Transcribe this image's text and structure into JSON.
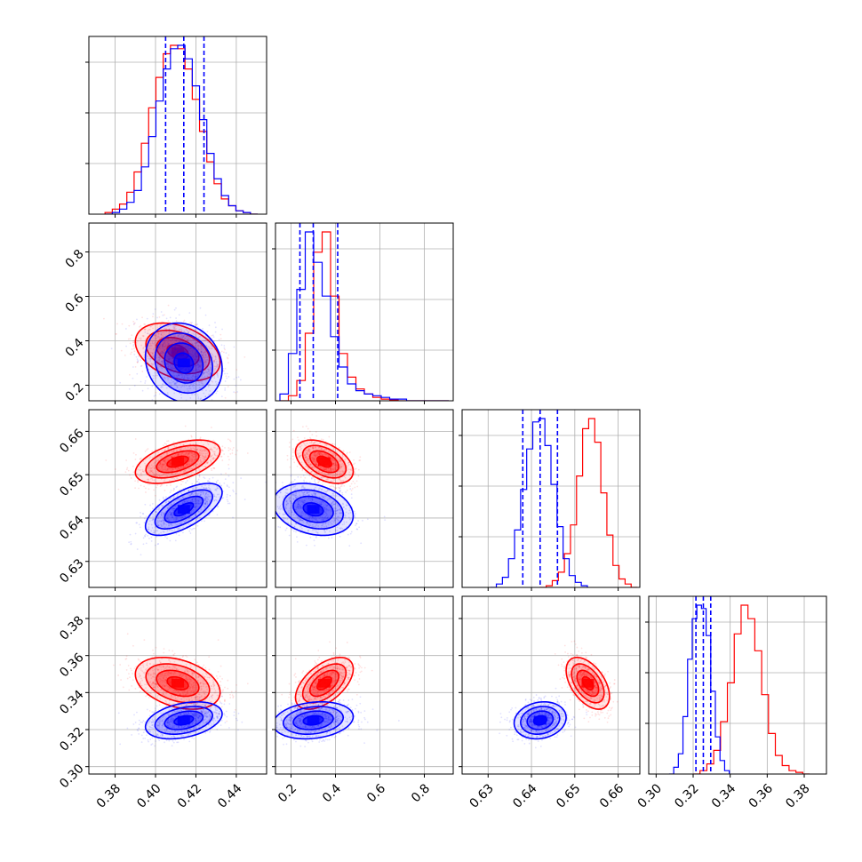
{
  "chart_data": {
    "type": "corner",
    "title": "",
    "params": [
      {
        "range": [
          0.367,
          0.455
        ],
        "ticks": [
          0.38,
          0.4,
          0.42,
          0.44
        ],
        "tick_labels": [
          "0.38",
          "0.40",
          "0.42",
          "0.44"
        ]
      },
      {
        "range": [
          0.13,
          0.93
        ],
        "ticks": [
          0.2,
          0.4,
          0.6,
          0.8
        ],
        "tick_labels": [
          "0.2",
          "0.4",
          "0.6",
          "0.8"
        ]
      },
      {
        "range": [
          0.624,
          0.665
        ],
        "ticks": [
          0.63,
          0.64,
          0.65,
          0.66
        ],
        "tick_labels": [
          "0.63",
          "0.64",
          "0.65",
          "0.66"
        ]
      },
      {
        "range": [
          0.296,
          0.392
        ],
        "ticks": [
          0.3,
          0.32,
          0.34,
          0.36,
          0.38
        ],
        "tick_labels": [
          "0.30",
          "0.32",
          "0.34",
          "0.36",
          "0.38"
        ]
      }
    ],
    "series": [
      {
        "color": "#ff0000",
        "mean": [
          0.411,
          0.35,
          0.653,
          0.345
        ],
        "sigma": [
          0.0105,
          0.065,
          0.0025,
          0.007
        ],
        "corr": [
          [
            1.0,
            -0.35,
            0.5,
            -0.35
          ],
          [
            -0.35,
            1.0,
            -0.45,
            0.55
          ],
          [
            0.5,
            -0.45,
            1.0,
            -0.5
          ],
          [
            -0.35,
            0.55,
            -0.5,
            1.0
          ]
        ],
        "histograms": {
          "0": {
            "edges": [
              0.375,
              0.3786,
              0.3822,
              0.3858,
              0.3894,
              0.393,
              0.3966,
              0.4002,
              0.4038,
              0.4074,
              0.411,
              0.4146,
              0.4182,
              0.4218,
              0.4254,
              0.429,
              0.4326,
              0.4362,
              0.4398,
              0.4434,
              0.447,
              0.4506
            ],
            "counts": [
              0.01,
              0.03,
              0.06,
              0.13,
              0.25,
              0.42,
              0.63,
              0.81,
              0.95,
              1.0,
              0.98,
              0.86,
              0.68,
              0.49,
              0.31,
              0.18,
              0.09,
              0.05,
              0.02,
              0.01,
              0.0
            ]
          },
          "1": {
            "edges": [
              0.15,
              0.188,
              0.226,
              0.264,
              0.302,
              0.34,
              0.378,
              0.416,
              0.454,
              0.492,
              0.53,
              0.568,
              0.606,
              0.644,
              0.682,
              0.72,
              0.758,
              0.796,
              0.834,
              0.872,
              0.91
            ],
            "counts": [
              0.0,
              0.03,
              0.12,
              0.4,
              0.88,
              1.0,
              0.62,
              0.28,
              0.14,
              0.07,
              0.04,
              0.02,
              0.01,
              0.005,
              0.0,
              0.0,
              0.0,
              0.0,
              0.0,
              0.0
            ]
          },
          "2": {
            "edges": [
              0.642,
              0.6434,
              0.6448,
              0.6462,
              0.6476,
              0.649,
              0.6504,
              0.6518,
              0.6532,
              0.6546,
              0.656,
              0.6574,
              0.6588,
              0.6602,
              0.6616,
              0.663,
              0.6644
            ],
            "counts": [
              0.0,
              0.01,
              0.04,
              0.09,
              0.2,
              0.37,
              0.66,
              0.94,
              1.0,
              0.86,
              0.56,
              0.31,
              0.13,
              0.05,
              0.02,
              0.0
            ]
          },
          "3": {
            "edges": [
              0.32,
              0.3237,
              0.3274,
              0.3311,
              0.3348,
              0.3385,
              0.3422,
              0.3459,
              0.3496,
              0.3533,
              0.357,
              0.3607,
              0.3644,
              0.3681,
              0.3718,
              0.3755,
              0.3792,
              0.3829
            ],
            "counts": [
              0.0,
              0.02,
              0.06,
              0.14,
              0.31,
              0.54,
              0.83,
              1.0,
              0.92,
              0.73,
              0.47,
              0.24,
              0.11,
              0.05,
              0.02,
              0.01,
              0.0
            ]
          }
        }
      },
      {
        "color": "#0000ff",
        "mean": [
          0.414,
          0.3,
          0.642,
          0.325
        ],
        "sigma": [
          0.0095,
          0.09,
          0.003,
          0.005
        ],
        "corr": [
          [
            1.0,
            -0.15,
            0.65,
            0.35
          ],
          [
            -0.15,
            1.0,
            -0.25,
            0.2
          ],
          [
            0.65,
            -0.25,
            1.0,
            0.15
          ],
          [
            0.35,
            0.2,
            0.15,
            1.0
          ]
        ],
        "quantiles": [
          [
            0.405,
            0.414,
            0.424
          ],
          [
            0.24,
            0.3,
            0.41
          ],
          [
            0.638,
            0.642,
            0.646
          ],
          [
            0.3215,
            0.3255,
            0.3295
          ]
        ],
        "histograms": {
          "0": {
            "edges": [
              0.375,
              0.3786,
              0.3822,
              0.3858,
              0.3894,
              0.393,
              0.3966,
              0.4002,
              0.4038,
              0.4074,
              0.411,
              0.4146,
              0.4182,
              0.4218,
              0.4254,
              0.429,
              0.4326,
              0.4362,
              0.4398,
              0.4434,
              0.447,
              0.4506
            ],
            "counts": [
              0.0,
              0.01,
              0.03,
              0.07,
              0.14,
              0.28,
              0.46,
              0.67,
              0.86,
              0.98,
              1.0,
              0.92,
              0.76,
              0.56,
              0.36,
              0.21,
              0.11,
              0.05,
              0.02,
              0.01,
              0.0
            ]
          },
          "1": {
            "edges": [
              0.15,
              0.188,
              0.226,
              0.264,
              0.302,
              0.34,
              0.378,
              0.416,
              0.454,
              0.492,
              0.53,
              0.568,
              0.606,
              0.644,
              0.682,
              0.72,
              0.758,
              0.796,
              0.834,
              0.872,
              0.91
            ],
            "counts": [
              0.04,
              0.28,
              0.66,
              1.0,
              0.82,
              0.62,
              0.38,
              0.2,
              0.1,
              0.06,
              0.04,
              0.03,
              0.02,
              0.01,
              0.01,
              0.0,
              0.0,
              0.0,
              0.0,
              0.0
            ]
          },
          "2": {
            "edges": [
              0.6305,
              0.6319,
              0.6333,
              0.6347,
              0.6361,
              0.6375,
              0.6389,
              0.6403,
              0.6417,
              0.6431,
              0.6445,
              0.6459,
              0.6473,
              0.6487,
              0.6501,
              0.6515,
              0.6529
            ],
            "counts": [
              0.0,
              0.02,
              0.06,
              0.17,
              0.34,
              0.58,
              0.82,
              0.98,
              1.0,
              0.84,
              0.61,
              0.36,
              0.17,
              0.07,
              0.03,
              0.01
            ]
          },
          "3": {
            "edges": [
              0.307,
              0.3095,
              0.312,
              0.3145,
              0.317,
              0.3195,
              0.322,
              0.3245,
              0.327,
              0.3295,
              0.332,
              0.3345,
              0.337,
              0.3395
            ],
            "counts": [
              0.0,
              0.04,
              0.12,
              0.34,
              0.68,
              0.92,
              1.0,
              0.98,
              0.82,
              0.49,
              0.22,
              0.08,
              0.02
            ]
          }
        }
      }
    ],
    "contour_levels_sigma": [
      0.5,
      1.0,
      1.5,
      2.0
    ],
    "grid": true,
    "legend": "none"
  }
}
